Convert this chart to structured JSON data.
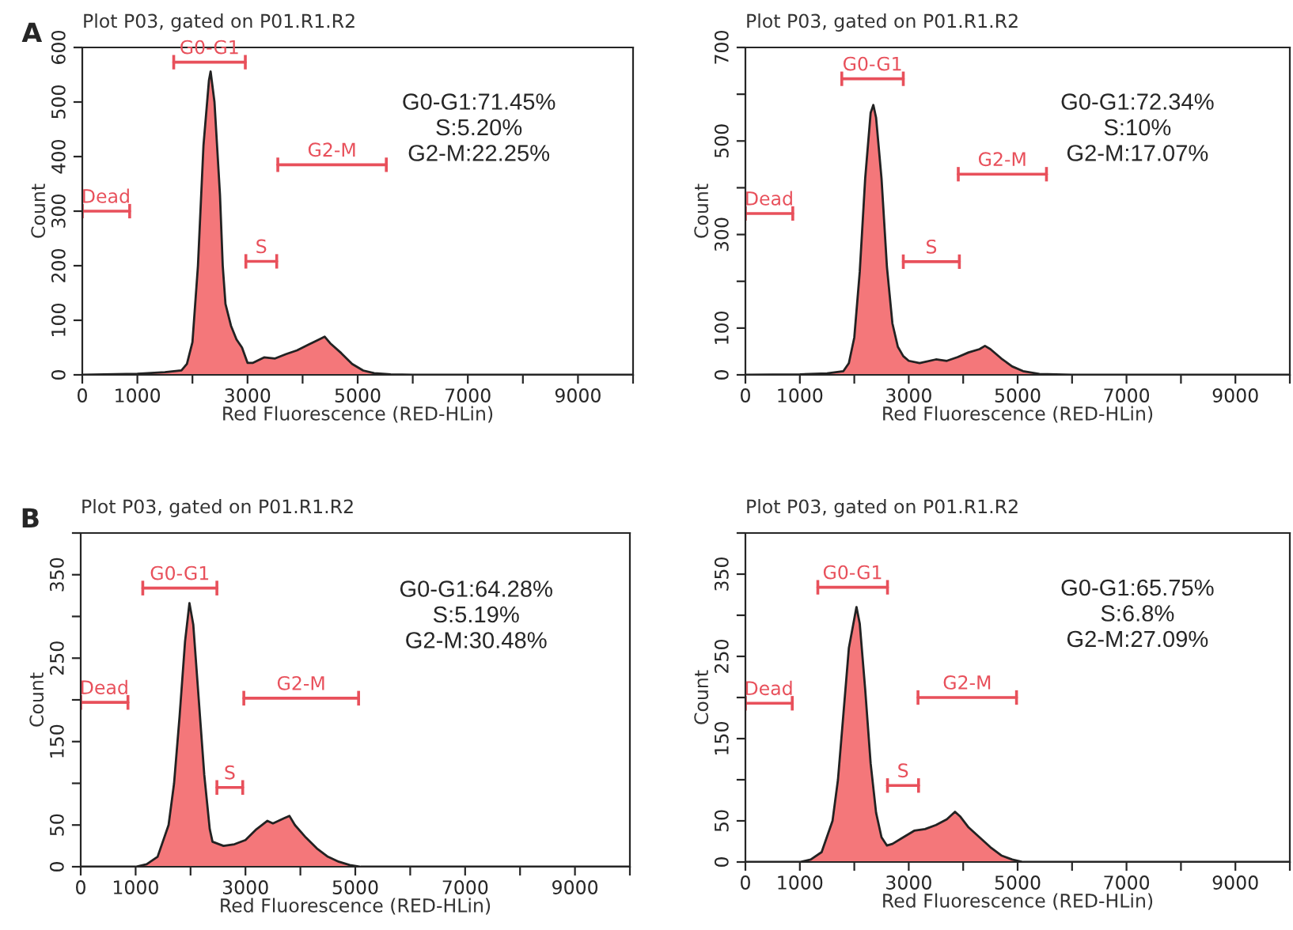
{
  "chart_data": [
    {
      "type": "area",
      "title": "Plot P03, gated on P01.R1.R2",
      "xlabel": "Red Fluorescence (RED-HLin)",
      "ylabel": "Count",
      "xlim": [
        0,
        10000
      ],
      "xticks": [
        0,
        1000,
        {
          "value": 2000,
          "label": null
        },
        3000,
        {
          "value": 4000,
          "label": null
        },
        5000,
        {
          "value": 6000,
          "label": null
        },
        7000,
        {
          "value": 8000,
          "label": null
        },
        9000,
        {
          "value": 10000,
          "label": null
        }
      ],
      "ylim": [
        0,
        600
      ],
      "yticks": [
        0,
        100,
        200,
        300,
        400,
        500,
        600
      ],
      "grid": false,
      "annotations": [
        "G0-G1:71.45%\nS:5.20%\nG2-M:22.25%",
        "A"
      ],
      "series": [
        {
          "type": "area",
          "color": "#f4777a",
          "x": [
            0,
            1000,
            1500,
            1800,
            1900,
            2000,
            2100,
            2200,
            2300,
            2330,
            2400,
            2500,
            2550,
            2600,
            2700,
            2800,
            2900,
            3000,
            3100,
            3300,
            3500,
            3700,
            3900,
            4100,
            4300,
            4400,
            4500,
            4700,
            4900,
            5100,
            5300,
            5600,
            6000,
            10000
          ],
          "values": [
            0,
            2,
            5,
            8,
            20,
            60,
            200,
            420,
            540,
            556,
            500,
            330,
            200,
            130,
            90,
            65,
            50,
            22,
            22,
            32,
            30,
            38,
            45,
            55,
            65,
            70,
            58,
            40,
            20,
            8,
            3,
            1,
            0,
            0
          ]
        },
        {
          "type": "line",
          "name": "Dead",
          "color": "#e8505b",
          "x": [
            0,
            860
          ],
          "values": [
            300,
            300
          ]
        },
        {
          "type": "line",
          "name": "G0-G1",
          "color": "#e8505b",
          "x": [
            1660,
            2960
          ],
          "values": [
            573,
            573
          ]
        },
        {
          "type": "line",
          "name": "S",
          "color": "#e8505b",
          "x": [
            2970,
            3530
          ],
          "values": [
            208,
            208
          ]
        },
        {
          "type": "line",
          "name": "G2-M",
          "color": "#e8505b",
          "x": [
            3550,
            5520
          ],
          "values": [
            385,
            385
          ]
        }
      ]
    },
    {
      "type": "area",
      "title": "Plot P03, gated on P01.R1.R2",
      "xlabel": "Red Fluorescence (RED-HLin)",
      "ylabel": "Count",
      "xlim": [
        0,
        10000
      ],
      "xticks": [
        0,
        1000,
        {
          "value": 2000,
          "label": null
        },
        3000,
        {
          "value": 4000,
          "label": null
        },
        5000,
        {
          "value": 6000,
          "label": null
        },
        7000,
        {
          "value": 8000,
          "label": null
        },
        9000,
        {
          "value": 10000,
          "label": null
        }
      ],
      "ylim": [
        0,
        700
      ],
      "yticks": [
        0,
        100,
        {
          "value": 200,
          "label": null
        },
        300,
        {
          "value": 400,
          "label": null
        },
        500,
        {
          "value": 600,
          "label": null
        },
        700
      ],
      "grid": false,
      "annotations": [
        "G0-G1:72.34%\nS:10%\nG2-M:17.07%"
      ],
      "series": [
        {
          "type": "area",
          "color": "#f4777a",
          "x": [
            0,
            1000,
            1500,
            1800,
            1900,
            2000,
            2100,
            2200,
            2300,
            2350,
            2400,
            2500,
            2600,
            2700,
            2800,
            2900,
            3000,
            3200,
            3500,
            3700,
            3900,
            4100,
            4300,
            4400,
            4500,
            4700,
            4900,
            5100,
            5400,
            6000,
            10000
          ],
          "values": [
            0,
            1,
            3,
            8,
            25,
            80,
            220,
            420,
            560,
            577,
            550,
            420,
            230,
            110,
            60,
            40,
            30,
            25,
            33,
            30,
            38,
            48,
            55,
            62,
            55,
            35,
            18,
            8,
            2,
            0,
            0
          ]
        },
        {
          "type": "line",
          "name": "Dead",
          "color": "#e8505b",
          "x": [
            0,
            870
          ],
          "values": [
            345,
            345
          ]
        },
        {
          "type": "line",
          "name": "G0-G1",
          "color": "#e8505b",
          "x": [
            1770,
            2900
          ],
          "values": [
            633,
            633
          ]
        },
        {
          "type": "line",
          "name": "S",
          "color": "#e8505b",
          "x": [
            2900,
            3930
          ],
          "values": [
            242,
            242
          ]
        },
        {
          "type": "line",
          "name": "G2-M",
          "color": "#e8505b",
          "x": [
            3910,
            5530
          ],
          "values": [
            429,
            429
          ]
        }
      ]
    },
    {
      "type": "area",
      "title": "Plot P03, gated on P01.R1.R2",
      "xlabel": "Red Fluorescence (RED-HLin)",
      "ylabel": "Count",
      "xlim": [
        0,
        10000
      ],
      "xticks": [
        0,
        1000,
        {
          "value": 2000,
          "label": null
        },
        3000,
        {
          "value": 4000,
          "label": null
        },
        5000,
        {
          "value": 6000,
          "label": null
        },
        7000,
        {
          "value": 8000,
          "label": null
        },
        9000,
        {
          "value": 10000,
          "label": null
        }
      ],
      "ylim": [
        0,
        400
      ],
      "yticks": [
        0,
        50,
        {
          "value": 100,
          "label": null
        },
        150,
        {
          "value": 200,
          "label": null
        },
        250,
        {
          "value": 300,
          "label": null
        },
        350,
        {
          "value": 400,
          "label": null
        }
      ],
      "grid": false,
      "annotations": [
        "G0-G1:64.28%\nS:5.19%\nG2-M:30.48%",
        "B"
      ],
      "series": [
        {
          "type": "area",
          "color": "#f4777a",
          "x": [
            0,
            1000,
            1200,
            1400,
            1600,
            1700,
            1800,
            1900,
            1980,
            2050,
            2150,
            2250,
            2350,
            2400,
            2600,
            2800,
            3000,
            3200,
            3400,
            3500,
            3700,
            3800,
            3900,
            4100,
            4300,
            4500,
            4700,
            4900,
            5100,
            10000
          ],
          "values": [
            0,
            0,
            3,
            12,
            50,
            100,
            180,
            270,
            316,
            290,
            200,
            110,
            45,
            30,
            25,
            27,
            32,
            45,
            55,
            52,
            58,
            61,
            50,
            35,
            22,
            12,
            6,
            2,
            0,
            0
          ]
        },
        {
          "type": "line",
          "name": "Dead",
          "color": "#e8505b",
          "x": [
            0,
            860
          ],
          "values": [
            197,
            197
          ]
        },
        {
          "type": "line",
          "name": "G0-G1",
          "color": "#e8505b",
          "x": [
            1130,
            2480
          ],
          "values": [
            334,
            334
          ]
        },
        {
          "type": "line",
          "name": "S",
          "color": "#e8505b",
          "x": [
            2480,
            2950
          ],
          "values": [
            95,
            95
          ]
        },
        {
          "type": "line",
          "name": "G2-M",
          "color": "#e8505b",
          "x": [
            2970,
            5060
          ],
          "values": [
            202,
            202
          ]
        }
      ]
    },
    {
      "type": "area",
      "title": "Plot P03, gated on P01.R1.R2",
      "xlabel": "Red Fluorescence (RED-HLin)",
      "ylabel": "Count",
      "xlim": [
        0,
        10000
      ],
      "xticks": [
        0,
        1000,
        {
          "value": 2000,
          "label": null
        },
        3000,
        {
          "value": 4000,
          "label": null
        },
        5000,
        {
          "value": 6000,
          "label": null
        },
        7000,
        {
          "value": 8000,
          "label": null
        },
        9000,
        {
          "value": 10000,
          "label": null
        }
      ],
      "ylim": [
        0,
        400
      ],
      "yticks": [
        0,
        50,
        {
          "value": 100,
          "label": null
        },
        150,
        {
          "value": 200,
          "label": null
        },
        250,
        {
          "value": 300,
          "label": null
        },
        350,
        {
          "value": 400,
          "label": null
        }
      ],
      "grid": false,
      "annotations": [
        "G0-G1:65.75%\nS:6.8%\nG2-M:27.09%"
      ],
      "series": [
        {
          "type": "area",
          "color": "#f4777a",
          "x": [
            0,
            1000,
            1200,
            1400,
            1600,
            1700,
            1800,
            1900,
            2040,
            2100,
            2200,
            2300,
            2400,
            2500,
            2600,
            2700,
            2900,
            3100,
            3300,
            3500,
            3700,
            3850,
            3950,
            4100,
            4300,
            4500,
            4700,
            4900,
            5100,
            10000
          ],
          "values": [
            0,
            0,
            3,
            12,
            50,
            100,
            180,
            260,
            310,
            290,
            210,
            120,
            60,
            30,
            20,
            22,
            30,
            38,
            40,
            45,
            52,
            61,
            55,
            42,
            30,
            18,
            8,
            3,
            0,
            0
          ]
        },
        {
          "type": "line",
          "name": "Dead",
          "color": "#e8505b",
          "x": [
            0,
            860
          ],
          "values": [
            193,
            193
          ]
        },
        {
          "type": "line",
          "name": "G0-G1",
          "color": "#e8505b",
          "x": [
            1330,
            2610
          ],
          "values": [
            334,
            334
          ]
        },
        {
          "type": "line",
          "name": "S",
          "color": "#e8505b",
          "x": [
            2610,
            3180
          ],
          "values": [
            93,
            93
          ]
        },
        {
          "type": "line",
          "name": "G2-M",
          "color": "#e8505b",
          "x": [
            3170,
            4980
          ],
          "values": [
            200,
            200
          ]
        }
      ]
    }
  ]
}
